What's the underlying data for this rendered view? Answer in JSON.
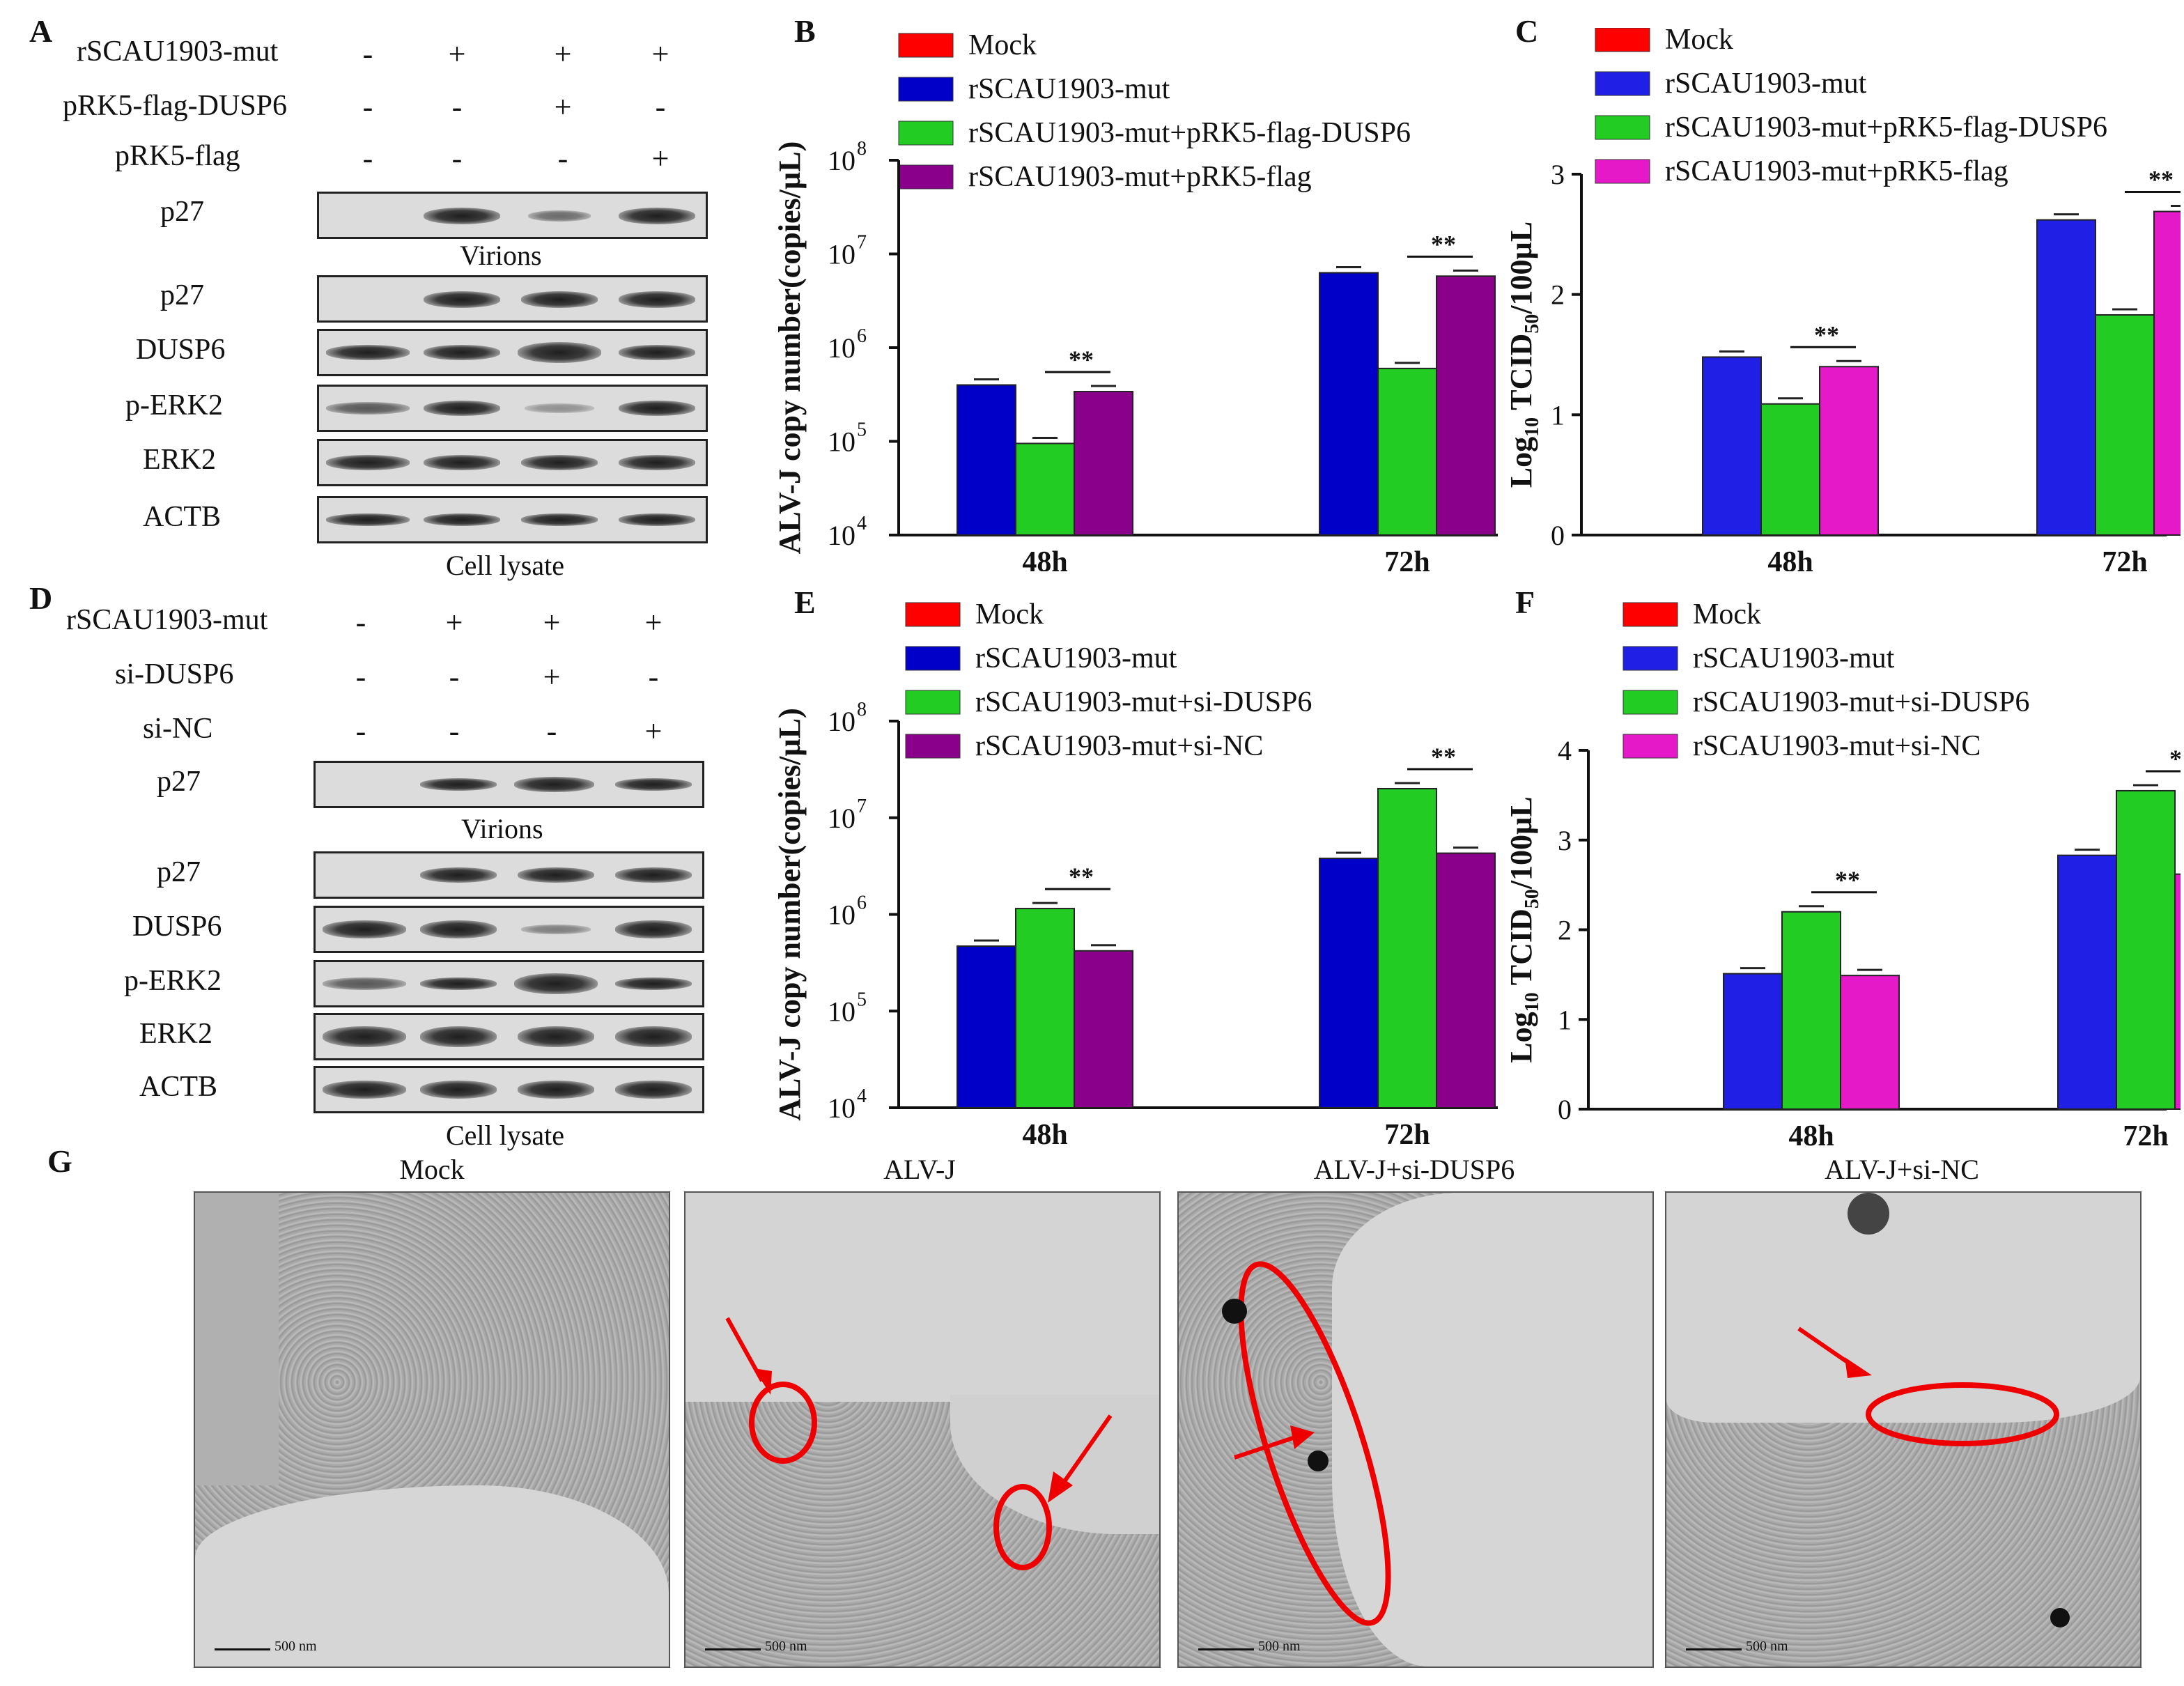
{
  "panel_labels": {
    "A": "A",
    "B": "B",
    "C": "C",
    "D": "D",
    "E": "E",
    "F": "F",
    "G": "G"
  },
  "colors": {
    "mock": "#ff0000",
    "mut": "#0000c8",
    "mut_alt": "#1f1fe6",
    "treat": "#22cc22",
    "ctrl_purple": "#8b008b",
    "ctrl_magenta": "#e619c8"
  },
  "blot_A": {
    "rows": [
      "rSCAU1903-mut",
      "pRK5-flag-DUSP6",
      "pRK5-flag"
    ],
    "signs": [
      [
        "-",
        "+",
        "+",
        "+"
      ],
      [
        "-",
        "-",
        "+",
        "-"
      ],
      [
        "-",
        "-",
        "-",
        "+"
      ]
    ],
    "bands": [
      "p27",
      "p27",
      "DUSP6",
      "p-ERK2",
      "ERK2",
      "ACTB"
    ],
    "virions": "Virions",
    "lysate": "Cell lysate"
  },
  "blot_D": {
    "rows": [
      "rSCAU1903-mut",
      "si-DUSP6",
      "si-NC"
    ],
    "signs": [
      [
        "-",
        "+",
        "+",
        "+"
      ],
      [
        "-",
        "-",
        "+",
        "-"
      ],
      [
        "-",
        "-",
        "-",
        "+"
      ]
    ],
    "bands": [
      "p27",
      "p27",
      "DUSP6",
      "p-ERK2",
      "ERK2",
      "ACTB"
    ],
    "virions": "Virions",
    "lysate": "Cell lysate"
  },
  "chart_data": [
    {
      "panel": "B",
      "type": "bar",
      "ylabel": "ALV-J copy number(copies/µL)",
      "yscale": "log",
      "ylim": [
        10000,
        100000000
      ],
      "yticks": [
        "10",
        "10",
        "10",
        "10",
        "10"
      ],
      "ytick_exp": [
        "4",
        "5",
        "6",
        "7",
        "8"
      ],
      "categories": [
        "48h",
        "72h"
      ],
      "legend": [
        "Mock",
        "rSCAU1903-mut",
        "rSCAU1903-mut+pRK5-flag-DUSP6",
        "rSCAU1903-mut+pRK5-flag"
      ],
      "series": [
        {
          "name": "Mock",
          "values": [
            0,
            0
          ]
        },
        {
          "name": "rSCAU1903-mut",
          "values": [
            400000,
            6300000
          ]
        },
        {
          "name": "rSCAU1903-mut+pRK5-flag-DUSP6",
          "values": [
            95000,
            600000
          ]
        },
        {
          "name": "rSCAU1903-mut+pRK5-flag",
          "values": [
            340000,
            5800000
          ]
        }
      ],
      "significance": [
        "**",
        "**"
      ]
    },
    {
      "panel": "C",
      "type": "bar",
      "ylabel_main": "Log",
      "ylabel_sub": "10",
      "ylabel_mid": " TCID",
      "ylabel_sub2": "50",
      "ylabel_end": "/100µL",
      "ylim": [
        0,
        3
      ],
      "yticks": [
        "0",
        "1",
        "2",
        "3"
      ],
      "categories": [
        "48h",
        "72h"
      ],
      "legend": [
        "Mock",
        "rSCAU1903-mut",
        "rSCAU1903-mut+pRK5-flag-DUSP6",
        "rSCAU1903-mut+pRK5-flag"
      ],
      "series": [
        {
          "name": "Mock",
          "values": [
            0,
            0
          ]
        },
        {
          "name": "rSCAU1903-mut",
          "values": [
            1.48,
            2.62
          ]
        },
        {
          "name": "rSCAU1903-mut+pRK5-flag-DUSP6",
          "values": [
            1.09,
            1.83
          ]
        },
        {
          "name": "rSCAU1903-mut+pRK5-flag",
          "values": [
            1.4,
            2.69
          ]
        }
      ],
      "significance": [
        "**",
        "**"
      ]
    },
    {
      "panel": "E",
      "type": "bar",
      "ylabel": "ALV-J copy number(copies/µL)",
      "yscale": "log",
      "ylim": [
        10000,
        100000000
      ],
      "yticks": [
        "10",
        "10",
        "10",
        "10",
        "10"
      ],
      "ytick_exp": [
        "4",
        "5",
        "6",
        "7",
        "8"
      ],
      "categories": [
        "48h",
        "72h"
      ],
      "legend": [
        "Mock",
        "rSCAU1903-mut",
        "rSCAU1903-mut+si-DUSP6",
        "rSCAU1903-mut+si-NC"
      ],
      "series": [
        {
          "name": "Mock",
          "values": [
            0,
            0
          ]
        },
        {
          "name": "rSCAU1903-mut",
          "values": [
            470000,
            3800000
          ]
        },
        {
          "name": "rSCAU1903-mut+si-DUSP6",
          "values": [
            1150000,
            20000000
          ]
        },
        {
          "name": "rSCAU1903-mut+si-NC",
          "values": [
            420000,
            4300000
          ]
        }
      ],
      "significance": [
        "**",
        "**"
      ]
    },
    {
      "panel": "F",
      "type": "bar",
      "ylabel_main": "Log",
      "ylabel_sub": "10",
      "ylabel_mid": " TCID",
      "ylabel_sub2": "50",
      "ylabel_end": "/100µL",
      "ylim": [
        0,
        4
      ],
      "yticks": [
        "0",
        "1",
        "2",
        "3",
        "4"
      ],
      "categories": [
        "48h",
        "72h"
      ],
      "legend": [
        "Mock",
        "rSCAU1903-mut",
        "rSCAU1903-mut+si-DUSP6",
        "rSCAU1903-mut+si-NC"
      ],
      "series": [
        {
          "name": "Mock",
          "values": [
            0,
            0
          ]
        },
        {
          "name": "rSCAU1903-mut",
          "values": [
            1.51,
            2.83
          ]
        },
        {
          "name": "rSCAU1903-mut+si-DUSP6",
          "values": [
            2.2,
            3.55
          ]
        },
        {
          "name": "rSCAU1903-mut+si-NC",
          "values": [
            1.49,
            2.62
          ]
        }
      ],
      "significance": [
        "**",
        "**"
      ]
    }
  ],
  "micrographs": {
    "titles": [
      "Mock",
      "ALV-J",
      "ALV-J+si-DUSP6",
      "ALV-J+si-NC"
    ],
    "scale": "500 nm"
  }
}
